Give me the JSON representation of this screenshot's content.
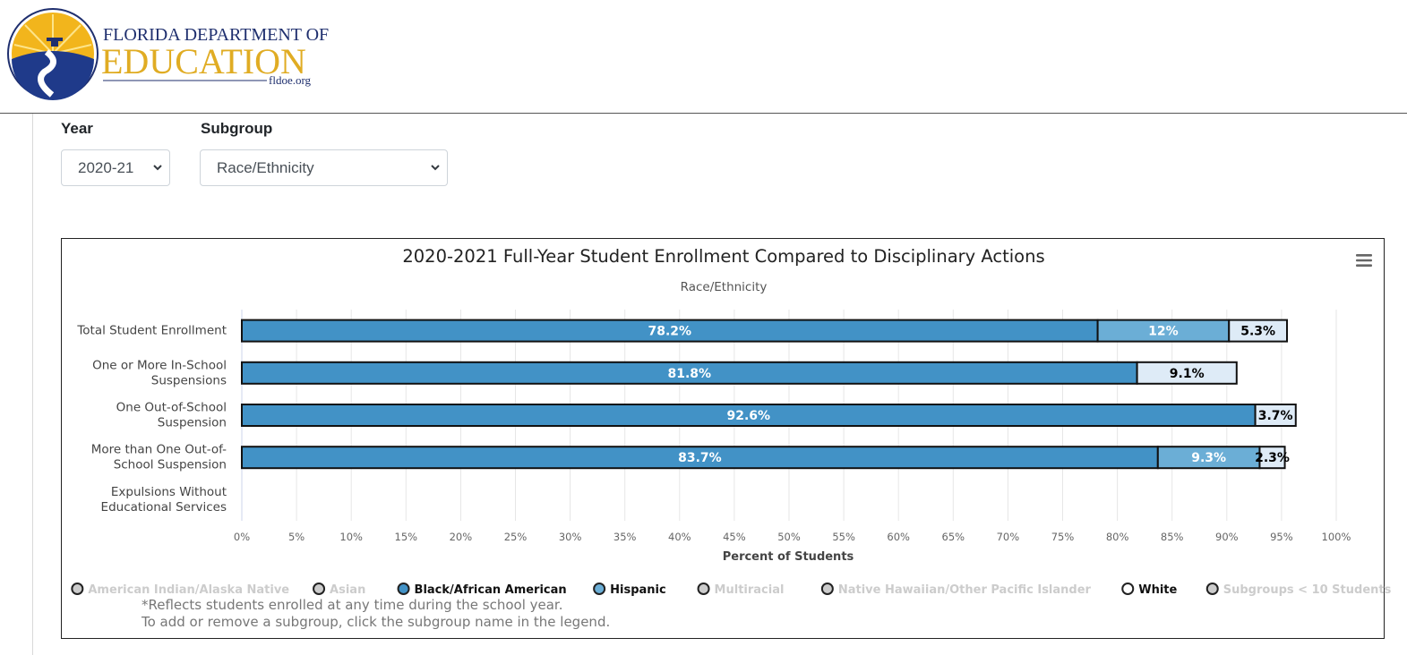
{
  "header": {
    "logo_line1": "FLORIDA DEPARTMENT OF",
    "logo_line2": "EDUCATION",
    "logo_url": "fldoe.org"
  },
  "filters": {
    "year_label": "Year",
    "year_value": "2020-21",
    "subgroup_label": "Subgroup",
    "subgroup_value": "Race/Ethnicity"
  },
  "menu_icon": "hamburger-menu-icon",
  "chart_data": {
    "type": "bar",
    "orientation": "horizontal",
    "stacked": true,
    "title": "2020-2021 Full-Year Student Enrollment Compared to Disciplinary Actions",
    "subtitle": "Race/Ethnicity",
    "xlabel": "Percent of Students",
    "xlim": [
      0,
      100
    ],
    "xticks": [
      "0%",
      "5%",
      "10%",
      "15%",
      "20%",
      "25%",
      "30%",
      "35%",
      "40%",
      "45%",
      "50%",
      "55%",
      "60%",
      "65%",
      "70%",
      "75%",
      "80%",
      "85%",
      "90%",
      "95%",
      "100%"
    ],
    "grid": true,
    "categories": [
      [
        "Total Student Enrollment"
      ],
      [
        "One or More In-School",
        "Suspensions"
      ],
      [
        "One Out-of-School",
        "Suspension"
      ],
      [
        "More than One Out-of-",
        "School Suspension"
      ],
      [
        "Expulsions Without",
        "Educational Services"
      ]
    ],
    "series": [
      {
        "name": "Black/African American",
        "color": "#4292c6",
        "values": [
          78.2,
          81.8,
          92.6,
          83.7,
          null
        ],
        "labels": [
          "78.2%",
          "81.8%",
          "92.6%",
          "83.7%",
          ""
        ]
      },
      {
        "name": "Hispanic",
        "color": "#6baed6",
        "values": [
          12,
          null,
          null,
          9.3,
          null
        ],
        "labels": [
          "12%",
          "",
          "",
          "9.3%",
          ""
        ]
      },
      {
        "name": "White",
        "color": "#deebf7",
        "values": [
          5.3,
          9.1,
          3.7,
          2.3,
          null
        ],
        "labels": [
          "5.3%",
          "9.1%",
          "3.7%",
          "2.3%",
          ""
        ]
      }
    ],
    "legend": {
      "placement": "bottom",
      "items": [
        {
          "name": "American Indian/Alaska Native",
          "active": false,
          "color": "#cccccc"
        },
        {
          "name": "Asian",
          "active": false,
          "color": "#cccccc"
        },
        {
          "name": "Black/African American",
          "active": true,
          "color": "#4292c6"
        },
        {
          "name": "Hispanic",
          "active": true,
          "color": "#6baed6"
        },
        {
          "name": "Multiracial",
          "active": false,
          "color": "#cccccc"
        },
        {
          "name": "Native Hawaiian/Other Pacific Islander",
          "active": false,
          "color": "#cccccc"
        },
        {
          "name": "White",
          "active": true,
          "color": "#ffffff"
        },
        {
          "name": "Subgroups < 10 Students",
          "active": false,
          "color": "#cccccc"
        }
      ]
    },
    "notes": [
      "*Reflects students enrolled at any time during the school year.",
      "To add or remove a subgroup, click the subgroup name in the legend."
    ]
  }
}
